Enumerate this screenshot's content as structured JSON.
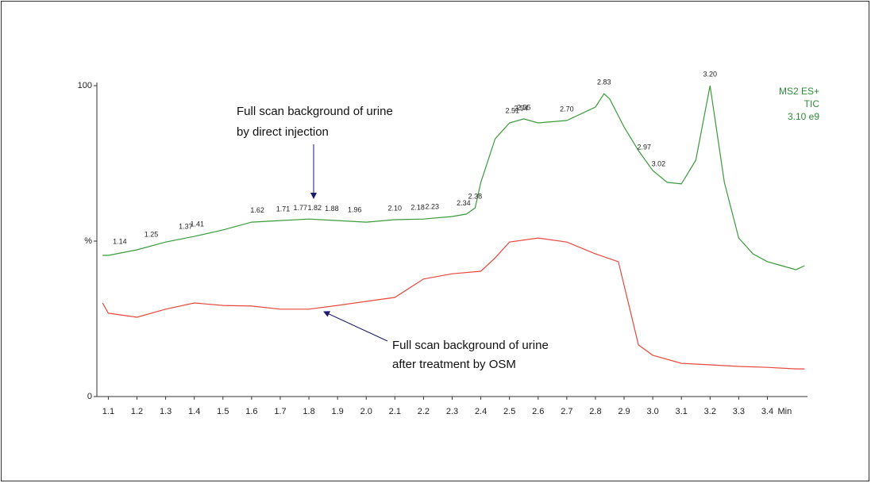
{
  "chart_data": {
    "type": "line",
    "xlim": [
      1.06,
      3.54
    ],
    "ylim": [
      0,
      100
    ],
    "xticks": [
      1.1,
      1.2,
      1.3,
      1.4,
      1.5,
      1.6,
      1.7,
      1.8,
      1.9,
      {
        "value": 2.0,
        "label": "2.0"
      },
      2.1,
      2.2,
      2.3,
      2.4,
      2.5,
      2.6,
      2.7,
      2.8,
      2.9,
      {
        "value": 3.0,
        "label": "3.0"
      },
      3.1,
      3.2,
      3.3,
      3.4
    ],
    "x_unit": "Min",
    "yticks": [
      0,
      {
        "value": 50,
        "label": "%"
      },
      100
    ],
    "info": [
      "MS2 ES+",
      "TIC",
      "3.10 e9"
    ],
    "series": [
      {
        "name": "Full scan background of urine by direct injection",
        "color": "#3a9a3a",
        "x": [
          1.08,
          1.1,
          1.2,
          1.3,
          1.4,
          1.5,
          1.6,
          1.7,
          1.8,
          1.9,
          2.0,
          2.1,
          2.2,
          2.3,
          2.35,
          2.38,
          2.4,
          2.45,
          2.5,
          2.55,
          2.6,
          2.7,
          2.8,
          2.83,
          2.85,
          2.9,
          2.95,
          3.0,
          3.05,
          3.1,
          3.15,
          3.2,
          3.25,
          3.3,
          3.35,
          3.4,
          3.45,
          3.5,
          3.53
        ],
        "values": [
          45.4,
          45.4,
          47.2,
          49.7,
          51.5,
          53.6,
          56.1,
          56.6,
          57.1,
          56.6,
          56.1,
          56.9,
          57.1,
          57.9,
          58.7,
          60.7,
          68.9,
          82.9,
          88.0,
          89.3,
          88.0,
          88.8,
          93.1,
          97.4,
          95.7,
          86.7,
          79.1,
          72.7,
          68.9,
          68.4,
          76.0,
          100,
          68.9,
          51.0,
          45.9,
          43.4,
          42.1,
          40.8,
          42.1
        ]
      },
      {
        "name": "Full scan background of urine after treatment by OSM",
        "color": "#e8473c",
        "x": [
          1.08,
          1.1,
          1.2,
          1.3,
          1.4,
          1.5,
          1.6,
          1.7,
          1.8,
          1.9,
          2.0,
          2.1,
          2.2,
          2.3,
          2.4,
          2.45,
          2.5,
          2.6,
          2.7,
          2.8,
          2.88,
          2.92,
          2.95,
          3.0,
          3.1,
          3.2,
          3.3,
          3.4,
          3.5,
          3.53
        ],
        "values": [
          30.1,
          26.8,
          25.5,
          28.1,
          30.1,
          29.3,
          29.1,
          28.1,
          28.1,
          29.3,
          30.6,
          31.9,
          37.8,
          39.5,
          40.3,
          44.6,
          49.7,
          51.0,
          49.7,
          45.9,
          43.4,
          28.1,
          16.6,
          13.3,
          10.7,
          10.2,
          9.7,
          9.4,
          8.9,
          8.9
        ]
      }
    ],
    "peak_labels": [
      {
        "value": 1.14,
        "label": "1.14"
      },
      {
        "value": 1.25,
        "label": "1.25"
      },
      {
        "value": 1.37,
        "label": "1.37"
      },
      {
        "value": 1.41,
        "label": "1.41"
      },
      {
        "value": 1.62,
        "label": "1.62"
      },
      {
        "value": 1.71,
        "label": "1.71"
      },
      {
        "value": 1.77,
        "label": "1.77"
      },
      {
        "value": 1.82,
        "label": "1.82"
      },
      {
        "value": 1.88,
        "label": "1.88"
      },
      {
        "value": 1.96,
        "label": "1.96"
      },
      {
        "value": 2.1,
        "label": "2.10"
      },
      {
        "value": 2.18,
        "label": "2.18"
      },
      {
        "value": 2.23,
        "label": "2.23"
      },
      {
        "value": 2.34,
        "label": "2.34"
      },
      {
        "value": 2.38,
        "label": "2.38"
      },
      {
        "value": 2.51,
        "label": "2.51"
      },
      {
        "value": 2.54,
        "label": "2.54"
      },
      {
        "value": 2.55,
        "label": "2.55"
      },
      {
        "value": 2.7,
        "label": "2.70"
      },
      {
        "value": 2.83,
        "label": "2.83"
      },
      {
        "value": 2.97,
        "label": "2.97"
      },
      {
        "value": 3.02,
        "label": "3.02"
      },
      {
        "value": 3.2,
        "label": "3.20"
      }
    ]
  }
}
